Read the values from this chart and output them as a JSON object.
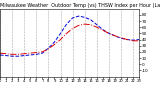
{
  "title": "Milwaukee Weather  Outdoor Temp (vs) THSW Index per Hour (Last 24 Hours)",
  "background_color": "#ffffff",
  "grid_color": "#aaaaaa",
  "ylim": [
    -20,
    90
  ],
  "xlim": [
    0,
    23
  ],
  "yticks": [
    -10,
    0,
    10,
    20,
    30,
    40,
    50,
    60,
    70,
    80
  ],
  "ytick_labels": [
    "-10",
    "0",
    "10",
    "20",
    "30",
    "40",
    "50",
    "60",
    "70",
    "80"
  ],
  "hours": [
    0,
    1,
    2,
    3,
    4,
    5,
    6,
    7,
    8,
    9,
    10,
    11,
    12,
    13,
    14,
    15,
    16,
    17,
    18,
    19,
    20,
    21,
    22,
    23
  ],
  "temp": [
    18,
    17,
    16,
    16,
    17,
    18,
    19,
    20,
    25,
    32,
    40,
    50,
    58,
    63,
    65,
    64,
    60,
    55,
    50,
    46,
    43,
    40,
    38,
    38
  ],
  "thsw": [
    15,
    14,
    13,
    13,
    14,
    15,
    16,
    18,
    26,
    36,
    50,
    65,
    75,
    78,
    76,
    72,
    64,
    56,
    50,
    46,
    42,
    40,
    39,
    40
  ],
  "temp_color": "#dd0000",
  "thsw_color": "#0000dd",
  "temp_lw": 0.7,
  "thsw_lw": 0.7,
  "title_fontsize": 3.5,
  "tick_fontsize": 3.0
}
